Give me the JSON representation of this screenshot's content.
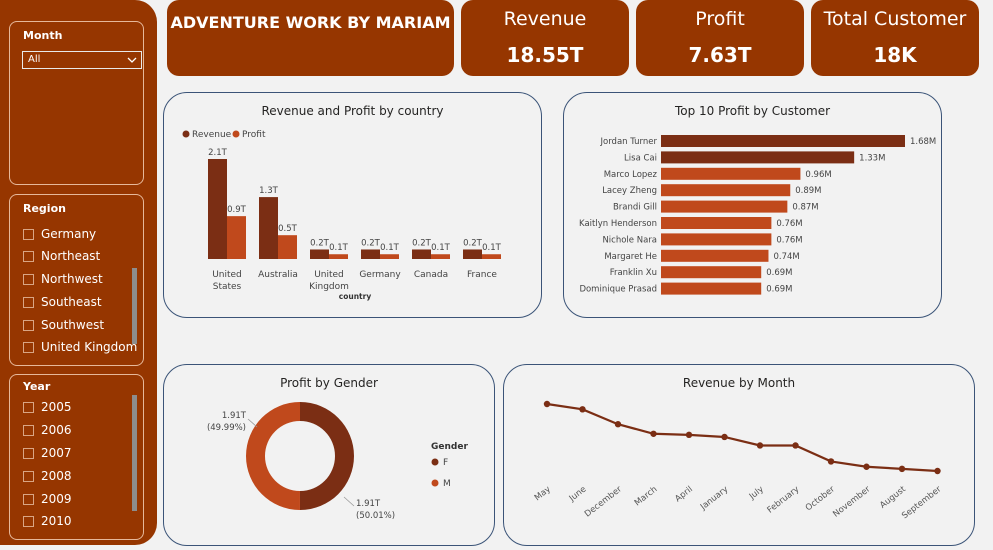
{
  "colors": {
    "accent": "#963600",
    "revenue": "#7b2e14",
    "profit": "#c0491c",
    "border": "#3b5478"
  },
  "filters": {
    "month": {
      "title": "Month",
      "selected": "All"
    },
    "region": {
      "title": "Region",
      "items": [
        "Germany",
        "Northeast",
        "Northwest",
        "Southeast",
        "Southwest",
        "United Kingdom"
      ]
    },
    "year": {
      "title": "Year",
      "items": [
        "2005",
        "2006",
        "2007",
        "2008",
        "2009",
        "2010"
      ]
    }
  },
  "kpis": {
    "title": "ADVENTURE WORK BY MARIAM",
    "revenue": {
      "label": "Revenue",
      "value": "18.55T"
    },
    "profit": {
      "label": "Profit",
      "value": "7.63T"
    },
    "customers": {
      "label": "Total Customer",
      "value": "18K"
    }
  },
  "panels": {
    "country": {
      "title": "Revenue and Profit by country"
    },
    "customers": {
      "title": "Top 10 Profit by Customer"
    },
    "gender": {
      "title": "Profit by Gender"
    },
    "month": {
      "title": "Revenue by Month"
    }
  },
  "chart_data": [
    {
      "type": "bar",
      "title": "Revenue and Profit by country",
      "xlabel": "country",
      "categories": [
        "United States",
        "Australia",
        "United Kingdom",
        "Germany",
        "Canada",
        "France"
      ],
      "series": [
        {
          "name": "Revenue",
          "values": [
            2.1,
            1.3,
            0.2,
            0.2,
            0.2,
            0.2
          ],
          "labels": [
            "2.1T",
            "1.3T",
            "0.2T",
            "0.2T",
            "0.2T",
            "0.2T"
          ]
        },
        {
          "name": "Profit",
          "values": [
            0.9,
            0.5,
            0.1,
            0.1,
            0.1,
            0.1
          ],
          "labels": [
            "0.9T",
            "0.5T",
            "0.1T",
            "0.1T",
            "0.1T",
            "0.1T"
          ]
        }
      ],
      "legend": "top-left"
    },
    {
      "type": "bar",
      "orientation": "horizontal",
      "title": "Top 10 Profit by Customer",
      "categories": [
        "Jordan Turner",
        "Lisa Cai",
        "Marco Lopez",
        "Lacey Zheng",
        "Brandi Gill",
        "Kaitlyn Henderson",
        "Nichole Nara",
        "Margaret He",
        "Franklin Xu",
        "Dominique Prasad"
      ],
      "values": [
        1.68,
        1.33,
        0.96,
        0.89,
        0.87,
        0.76,
        0.76,
        0.74,
        0.69,
        0.69
      ],
      "labels": [
        "1.68M",
        "1.33M",
        "0.96M",
        "0.89M",
        "0.87M",
        "0.76M",
        "0.76M",
        "0.74M",
        "0.69M",
        "0.69M"
      ],
      "highlighted": 2
    },
    {
      "type": "pie",
      "title": "Profit by Gender",
      "legend_title": "Gender",
      "slices": [
        {
          "name": "F",
          "value": 50.01,
          "label": "1.91T",
          "percent": "(50.01%)"
        },
        {
          "name": "M",
          "value": 49.99,
          "label": "1.91T",
          "percent": "(49.99%)"
        }
      ]
    },
    {
      "type": "line",
      "title": "Revenue by Month",
      "categories": [
        "May",
        "June",
        "December",
        "March",
        "April",
        "January",
        "July",
        "February",
        "October",
        "November",
        "August",
        "September"
      ],
      "values": [
        1.72,
        1.67,
        1.53,
        1.44,
        1.43,
        1.41,
        1.33,
        1.33,
        1.18,
        1.13,
        1.11,
        1.09
      ]
    }
  ]
}
